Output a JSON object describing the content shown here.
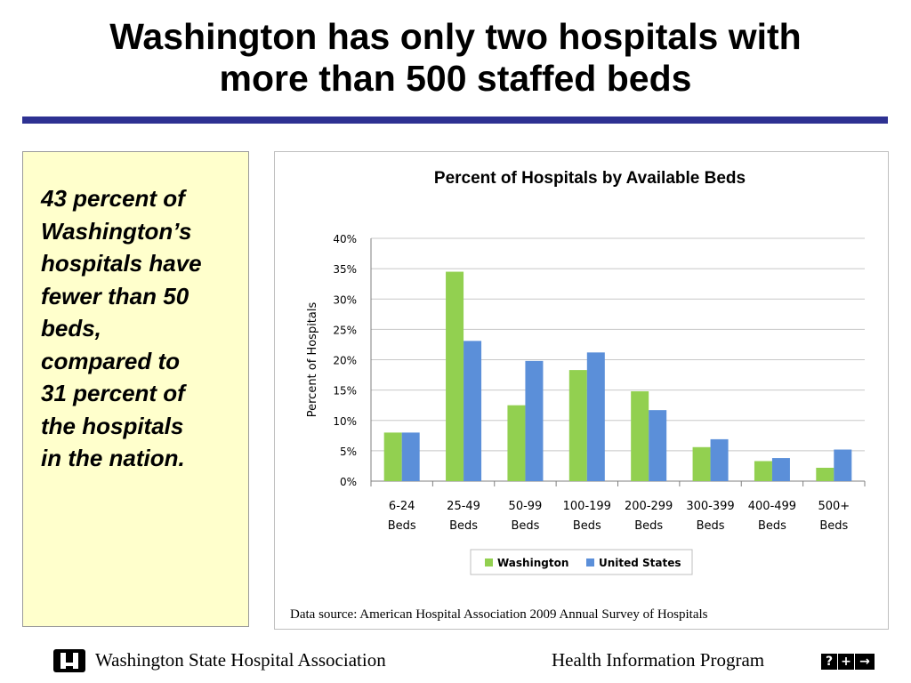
{
  "slide": {
    "title_line1": "Washington has only two hospitals with",
    "title_line2": "more than 500 staffed beds",
    "accent_color": "#2e3192",
    "callout_lines": [
      "43 percent of",
      "Washington’s",
      "hospitals have",
      "fewer than 50",
      "beds,",
      "compared to",
      "31 percent of",
      "the hospitals",
      "in the nation."
    ],
    "callout_background": "#ffffcc",
    "source": "Data source:  American Hospital Association 2009 Annual Survey of Hospitals"
  },
  "footer": {
    "left": "Washington State Hospital Association",
    "right": "Health Information Program",
    "logo_icon": "wsha-logo-icon",
    "program_icon": "question-plus-arrow-icon",
    "program_glyphs": [
      "?",
      "+",
      "→"
    ]
  },
  "chart_data": {
    "type": "bar",
    "title": "Percent of Hospitals by Available Beds",
    "xlabel": "",
    "ylabel": "Percent of Hospitals",
    "ylim": [
      0,
      40
    ],
    "yticks": [
      "0%",
      "5%",
      "10%",
      "15%",
      "20%",
      "25%",
      "30%",
      "35%",
      "40%"
    ],
    "grid": true,
    "legend_position": "bottom",
    "categories": [
      [
        "6-24",
        "Beds"
      ],
      [
        "25-49",
        "Beds"
      ],
      [
        "50-99",
        "Beds"
      ],
      [
        "100-199",
        "Beds"
      ],
      [
        "200-299",
        "Beds"
      ],
      [
        "300-399",
        "Beds"
      ],
      [
        "400-499",
        "Beds"
      ],
      [
        "500+",
        "Beds"
      ]
    ],
    "series": [
      {
        "name": "Washington",
        "color": "#92d050",
        "values": [
          8.0,
          34.5,
          12.5,
          18.3,
          14.8,
          5.6,
          3.3,
          2.2
        ]
      },
      {
        "name": "United States",
        "color": "#5b8fd9",
        "values": [
          8.0,
          23.1,
          19.8,
          21.2,
          11.7,
          6.9,
          3.8,
          5.2
        ]
      }
    ]
  }
}
